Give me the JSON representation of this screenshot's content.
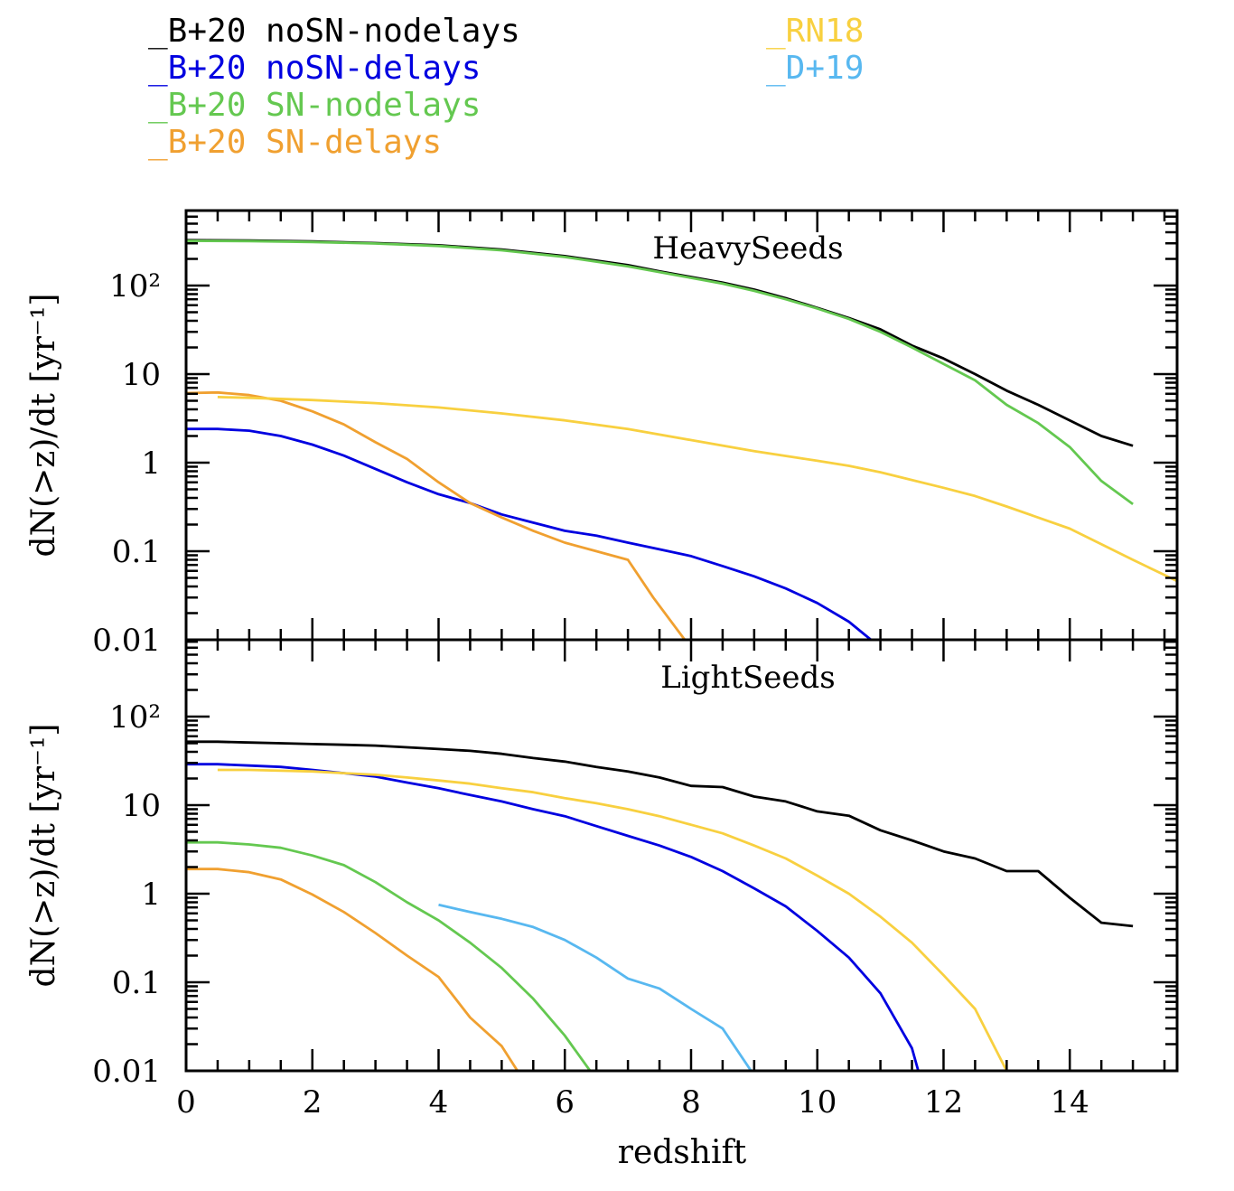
{
  "legend": {
    "left": [
      {
        "text": "_B+20 noSN-nodelays",
        "color": "#000000"
      },
      {
        "text": "_B+20 noSN-delays",
        "color": "#0000e0"
      },
      {
        "text": "_B+20 SN-nodelays",
        "color": "#64c850"
      },
      {
        "text": "_B+20 SN-delays",
        "color": "#f0a030"
      }
    ],
    "right": [
      {
        "text": "_RN18",
        "color": "#f8d040"
      },
      {
        "text": "_D+19",
        "color": "#58b8f0"
      }
    ]
  },
  "chart_data": [
    {
      "type": "line",
      "title": "HeavySeeds",
      "xlabel": "",
      "ylabel": "dN(>z)/dt [yr⁻¹]",
      "xlim": [
        0,
        15.7
      ],
      "ylim": [
        0.01,
        500
      ],
      "yscale": "log",
      "ytick_labels": [
        "0.01",
        "0.1",
        "1",
        "10",
        "10²"
      ],
      "series": [
        {
          "name": "B+20 noSN-nodelays",
          "color": "#000000",
          "x": [
            0,
            1,
            2,
            3,
            4,
            5,
            6,
            7,
            7.5,
            8,
            8.5,
            9,
            9.5,
            10,
            10.5,
            11,
            11.5,
            12,
            12.5,
            13,
            13.5,
            14,
            14.5,
            15
          ],
          "y": [
            325,
            322,
            315,
            302,
            285,
            255,
            215,
            170,
            145,
            125,
            108,
            90,
            72,
            56,
            43,
            32,
            21,
            15,
            10,
            6.5,
            4.5,
            3.0,
            2.0,
            1.55
          ]
        },
        {
          "name": "B+20 noSN-delays",
          "color": "#0000e0",
          "x": [
            0,
            0.5,
            1,
            1.5,
            2,
            2.5,
            3,
            3.5,
            4,
            4.5,
            5,
            5.5,
            6,
            6.5,
            7,
            7.5,
            8,
            8.5,
            9,
            9.5,
            10,
            10.5,
            10.85
          ],
          "y": [
            2.4,
            2.4,
            2.3,
            2.0,
            1.6,
            1.2,
            0.85,
            0.6,
            0.44,
            0.35,
            0.26,
            0.21,
            0.17,
            0.15,
            0.125,
            0.105,
            0.088,
            0.068,
            0.052,
            0.038,
            0.026,
            0.016,
            0.01
          ]
        },
        {
          "name": "B+20 SN-nodelays",
          "color": "#64c850",
          "x": [
            0,
            1,
            2,
            3,
            4,
            5,
            6,
            7,
            7.5,
            8,
            8.5,
            9,
            9.5,
            10,
            10.5,
            11,
            11.5,
            12,
            12.5,
            13,
            13.5,
            14,
            14.5,
            15
          ],
          "y": [
            320,
            318,
            310,
            298,
            280,
            250,
            210,
            165,
            142,
            122,
            105,
            87,
            70,
            55,
            42,
            30,
            20,
            13,
            8.5,
            4.5,
            2.8,
            1.5,
            0.62,
            0.34
          ]
        },
        {
          "name": "B+20 SN-delays",
          "color": "#f0a030",
          "x": [
            0,
            0.5,
            1,
            1.5,
            2,
            2.5,
            3,
            3.5,
            4,
            4.5,
            5,
            5.5,
            6,
            6.5,
            7,
            7.4,
            7.9
          ],
          "y": [
            6.1,
            6.2,
            5.8,
            5.0,
            3.8,
            2.7,
            1.7,
            1.1,
            0.6,
            0.35,
            0.24,
            0.17,
            0.125,
            0.1,
            0.08,
            0.03,
            0.01
          ]
        },
        {
          "name": "RN18",
          "color": "#f8d040",
          "x": [
            0.5,
            1,
            2,
            3,
            4,
            5,
            6,
            7,
            8,
            9,
            10,
            10.5,
            11,
            12,
            12.5,
            13,
            14,
            14.5,
            15,
            15.7
          ],
          "y": [
            5.5,
            5.4,
            5.1,
            4.7,
            4.2,
            3.6,
            3.0,
            2.4,
            1.8,
            1.35,
            1.05,
            0.92,
            0.78,
            0.52,
            0.42,
            0.32,
            0.18,
            0.12,
            0.08,
            0.046
          ]
        }
      ]
    },
    {
      "type": "line",
      "title": "LightSeeds",
      "xlabel": "redshift",
      "ylabel": "dN(>z)/dt [yr⁻¹]",
      "xlim": [
        0,
        15.7
      ],
      "ylim": [
        0.01,
        500
      ],
      "yscale": "log",
      "ytick_labels": [
        "0.01",
        "0.1",
        "1",
        "10",
        "10²"
      ],
      "xtick_labels": [
        "0",
        "2",
        "4",
        "6",
        "8",
        "10",
        "12",
        "14"
      ],
      "series": [
        {
          "name": "B+20 noSN-nodelays",
          "color": "#000000",
          "x": [
            0,
            0.5,
            1,
            1.5,
            2,
            2.5,
            3,
            3.5,
            4,
            4.5,
            5,
            5.5,
            6,
            6.5,
            7,
            7.5,
            8,
            8.5,
            9,
            9.5,
            10,
            10.5,
            11,
            11.5,
            12,
            12.5,
            13,
            13.5,
            14,
            14.5,
            15
          ],
          "y": [
            52,
            52,
            51,
            50,
            49,
            48,
            47,
            45,
            43,
            41,
            38,
            34,
            31,
            27,
            24,
            20.5,
            16.5,
            16,
            12.5,
            11,
            8.5,
            7.6,
            5.2,
            4.0,
            3.0,
            2.5,
            1.8,
            1.8,
            0.9,
            0.47,
            0.43
          ]
        },
        {
          "name": "B+20 noSN-delays",
          "color": "#0000e0",
          "x": [
            0,
            0.5,
            1,
            1.5,
            2,
            2.5,
            3,
            3.5,
            4,
            4.5,
            5,
            5.5,
            6,
            6.5,
            7,
            7.5,
            8,
            8.5,
            9,
            9.5,
            10,
            10.5,
            11,
            11.5,
            11.6
          ],
          "y": [
            29,
            29,
            28,
            27,
            25,
            23,
            21,
            18,
            15.5,
            13,
            11,
            9,
            7.5,
            5.8,
            4.5,
            3.5,
            2.6,
            1.8,
            1.15,
            0.72,
            0.38,
            0.19,
            0.075,
            0.018,
            0.01
          ]
        },
        {
          "name": "B+20 SN-nodelays",
          "color": "#64c850",
          "x": [
            0,
            0.5,
            1,
            1.5,
            2,
            2.5,
            3,
            3.5,
            4,
            4.5,
            5,
            5.5,
            6,
            6.4
          ],
          "y": [
            3.8,
            3.8,
            3.6,
            3.3,
            2.7,
            2.1,
            1.35,
            0.8,
            0.5,
            0.28,
            0.145,
            0.065,
            0.025,
            0.01
          ]
        },
        {
          "name": "B+20 SN-delays",
          "color": "#f0a030",
          "x": [
            0,
            0.5,
            1,
            1.5,
            2,
            2.5,
            3,
            3.5,
            4,
            4.5,
            5,
            5.25
          ],
          "y": [
            1.9,
            1.9,
            1.75,
            1.45,
            0.98,
            0.62,
            0.36,
            0.2,
            0.115,
            0.04,
            0.019,
            0.01
          ]
        },
        {
          "name": "RN18",
          "color": "#f8d040",
          "x": [
            0.5,
            1,
            1.5,
            2,
            2.5,
            3,
            3.5,
            4,
            4.5,
            5,
            5.5,
            6,
            6.5,
            7,
            7.5,
            8,
            8.5,
            9,
            9.5,
            10,
            10.5,
            11,
            11.5,
            12,
            12.5,
            13
          ],
          "y": [
            25,
            25,
            24.5,
            24,
            23,
            22,
            20.5,
            19,
            17.5,
            15.5,
            14,
            12,
            10.5,
            9,
            7.5,
            6,
            4.8,
            3.5,
            2.5,
            1.6,
            1.0,
            0.55,
            0.28,
            0.12,
            0.05,
            0.01
          ]
        },
        {
          "name": "D+19",
          "color": "#58b8f0",
          "x": [
            4,
            4.5,
            5,
            5.5,
            6,
            6.5,
            7,
            7.5,
            8,
            8.5,
            8.95
          ],
          "y": [
            0.75,
            0.62,
            0.52,
            0.42,
            0.3,
            0.19,
            0.11,
            0.085,
            0.05,
            0.03,
            0.01
          ]
        }
      ]
    }
  ]
}
